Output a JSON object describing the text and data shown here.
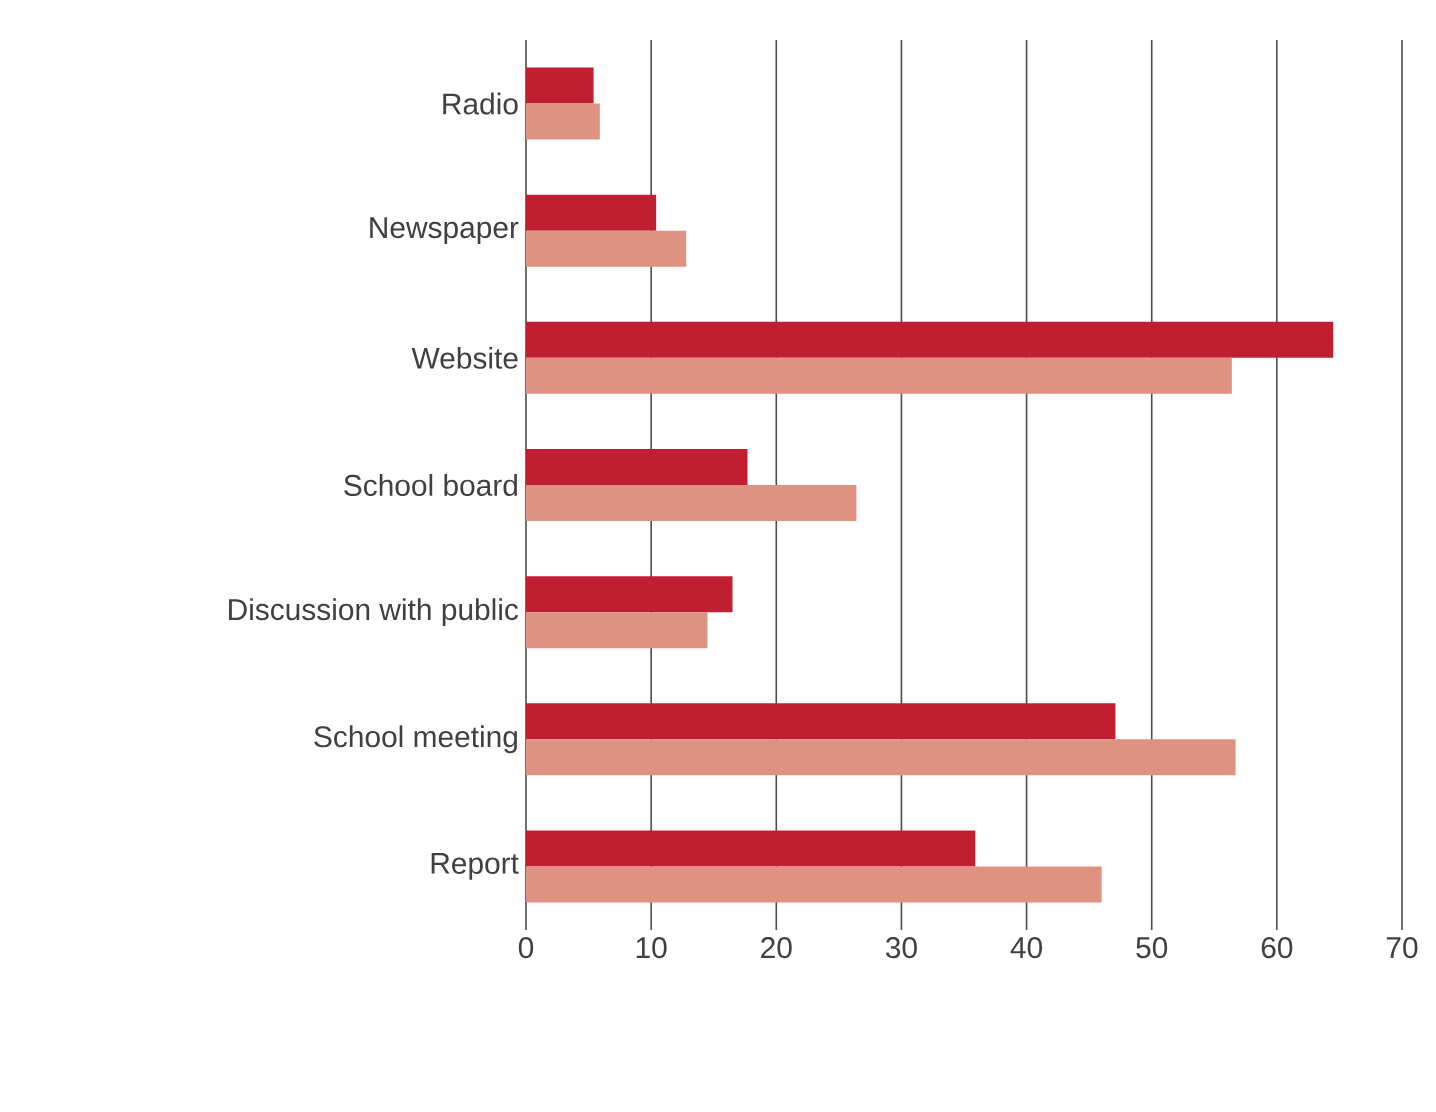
{
  "chart_data": {
    "type": "bar",
    "orientation": "horizontal",
    "categories": [
      "Radio",
      "Newspaper",
      "Website",
      "School board",
      "Discussion with public",
      "School meeting",
      "Report"
    ],
    "series": [
      {
        "color": "#c01f31",
        "values": [
          5.4,
          10.4,
          64.5,
          17.7,
          16.5,
          47.1,
          35.9
        ]
      },
      {
        "color": "#df9182",
        "values": [
          5.9,
          12.8,
          56.4,
          26.4,
          14.5,
          56.7,
          46.0
        ]
      }
    ],
    "xlim": [
      0,
      70
    ],
    "xticks": [
      0,
      10,
      20,
      30,
      40,
      50,
      60,
      70
    ],
    "grid": "x"
  }
}
